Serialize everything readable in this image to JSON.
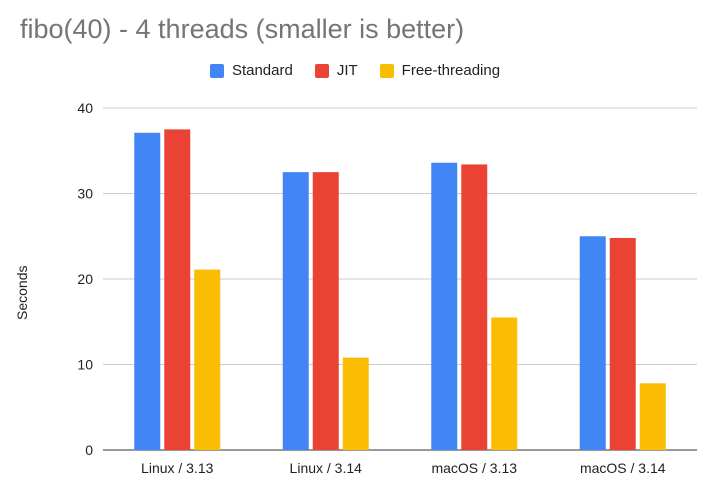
{
  "chart_data": {
    "type": "bar",
    "title": "fibo(40) - 4 threads (smaller is better)",
    "xlabel": "",
    "ylabel": "Seconds",
    "categories": [
      "Linux / 3.13",
      "Linux / 3.14",
      "macOS / 3.13",
      "macOS / 3.14"
    ],
    "series": [
      {
        "name": "Standard",
        "color": "#4285f4",
        "values": [
          37.1,
          32.5,
          33.6,
          25.0
        ]
      },
      {
        "name": "JIT",
        "color": "#ea4335",
        "values": [
          37.5,
          32.5,
          33.4,
          24.8
        ]
      },
      {
        "name": "Free-threading",
        "color": "#fbbc04",
        "values": [
          21.1,
          10.8,
          15.5,
          7.8
        ]
      }
    ],
    "ylim": [
      0,
      40
    ],
    "yticks": [
      0,
      10,
      20,
      30,
      40
    ],
    "grid": true,
    "legend_position": "top-center"
  }
}
